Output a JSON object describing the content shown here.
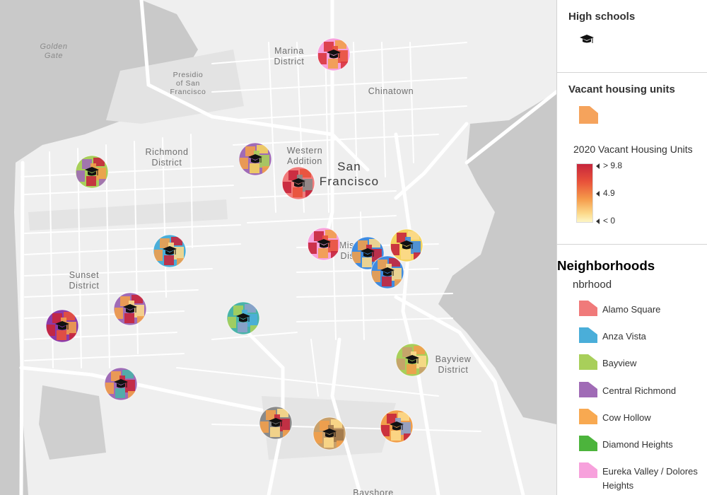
{
  "map": {
    "place_labels": [
      {
        "name": "golden-gate-label",
        "text": "Golden",
        "text2": "Gate",
        "type": "water"
      },
      {
        "name": "presidio-label",
        "text": "Presidio",
        "text2": "of San",
        "text3": "Francisco",
        "type": "small"
      },
      {
        "name": "marina-district-label",
        "text": "Marina",
        "text2": "District",
        "type": "normal"
      },
      {
        "name": "chinatown-label",
        "text": "Chinatown",
        "type": "normal"
      },
      {
        "name": "richmond-district-label",
        "text": "Richmond",
        "text2": "District",
        "type": "normal"
      },
      {
        "name": "western-addition-label",
        "text": "Western",
        "text2": "Addition",
        "type": "normal"
      },
      {
        "name": "san-francisco-label",
        "text": "San",
        "text2": "Francisco",
        "type": "big"
      },
      {
        "name": "mission-district-label",
        "text": "Mission",
        "text2": "District",
        "type": "normal"
      },
      {
        "name": "sunset-district-label",
        "text": "Sunset",
        "text2": "District",
        "type": "normal"
      },
      {
        "name": "bayview-district-label",
        "text": "Bayview",
        "text2": "District",
        "type": "normal"
      },
      {
        "name": "bayshore-label",
        "text": "Bayshore",
        "type": "normal"
      }
    ],
    "high_school_markers": [
      {
        "name": "school-marker-marina",
        "palette": [
          "#f7a1dc",
          "#d9363f",
          "#f19f4b",
          "#e8513a"
        ]
      },
      {
        "name": "school-marker-western-addition",
        "palette": [
          "#a06bb6",
          "#f19f4b",
          "#f4d35e",
          "#a8cf5a",
          "#5ab0d4"
        ]
      },
      {
        "name": "school-marker-fillmore",
        "palette": [
          "#f07a7a",
          "#c6263c",
          "#e8513a",
          "#888888"
        ]
      },
      {
        "name": "school-marker-richmond",
        "palette": [
          "#a8cf5a",
          "#a06bb6",
          "#c6263c",
          "#f19f4b"
        ]
      },
      {
        "name": "school-marker-anza-vista",
        "palette": [
          "#4aaed9",
          "#f19f4b",
          "#c6263c",
          "#fcd98a"
        ]
      },
      {
        "name": "school-marker-mission-west",
        "palette": [
          "#f7a1dc",
          "#c6263c",
          "#f19f4b",
          "#e8513a"
        ]
      },
      {
        "name": "school-marker-mission",
        "palette": [
          "#3f8be0",
          "#f19f4b",
          "#fcd98a",
          "#c6263c"
        ]
      },
      {
        "name": "school-marker-potrero",
        "palette": [
          "#f4d35e",
          "#c6263c",
          "#fcd98a",
          "#3f8be0"
        ]
      },
      {
        "name": "school-marker-mission-south",
        "palette": [
          "#3f8be0",
          "#f19f4b",
          "#c6263c",
          "#fcd98a"
        ]
      },
      {
        "name": "school-marker-sunset-west",
        "palette": [
          "#8b3aa8",
          "#c6263c",
          "#e8513a",
          "#f19f4b"
        ]
      },
      {
        "name": "school-marker-sunset",
        "palette": [
          "#a06bb6",
          "#f19f4b",
          "#c6263c",
          "#fcd98a"
        ]
      },
      {
        "name": "school-marker-twin-peaks",
        "palette": [
          "#49b3a8",
          "#a8cf5a",
          "#8da0cb",
          "#4aaed9"
        ]
      },
      {
        "name": "school-marker-lakeshore",
        "palette": [
          "#a06bb6",
          "#f19f4b",
          "#49b3a8",
          "#c6263c"
        ]
      },
      {
        "name": "school-marker-bayview",
        "palette": [
          "#a8cf5a",
          "#c8a06b",
          "#f19f4b",
          "#fcd98a"
        ]
      },
      {
        "name": "school-marker-excelsior",
        "palette": [
          "#8a8a8a",
          "#f19f4b",
          "#fcd98a",
          "#c6263c"
        ]
      },
      {
        "name": "school-marker-outer-mission",
        "palette": [
          "#c8a06b",
          "#f19f4b",
          "#fcd98a",
          "#a0784b"
        ]
      },
      {
        "name": "school-marker-visitacion",
        "palette": [
          "#f19f4b",
          "#c6263c",
          "#fcd98a",
          "#8da0cb"
        ]
      }
    ]
  },
  "legend": {
    "high_schools": {
      "title": "High schools",
      "icon": "graduation-cap-icon"
    },
    "vacant": {
      "title": "Vacant housing units",
      "swatch_color": "#f5a35c",
      "field_title": "2020 Vacant Housing Units",
      "ramp_labels": [
        "> 9.8",
        "4.9",
        "< 0"
      ]
    },
    "neighborhoods": {
      "title": "Neighborhoods",
      "field": "nbrhood",
      "items": [
        {
          "label": "Alamo Square",
          "color": "#f07a7a"
        },
        {
          "label": "Anza Vista",
          "color": "#4aaed9"
        },
        {
          "label": "Bayview",
          "color": "#a8cf5a"
        },
        {
          "label": "Central Richmond",
          "color": "#a06bb6"
        },
        {
          "label": "Cow Hollow",
          "color": "#f8a951"
        },
        {
          "label": "Diamond Heights",
          "color": "#4cb43c"
        },
        {
          "label": "Eureka Valley / Dolores Heights",
          "color": "#f7a1dc"
        }
      ]
    }
  }
}
